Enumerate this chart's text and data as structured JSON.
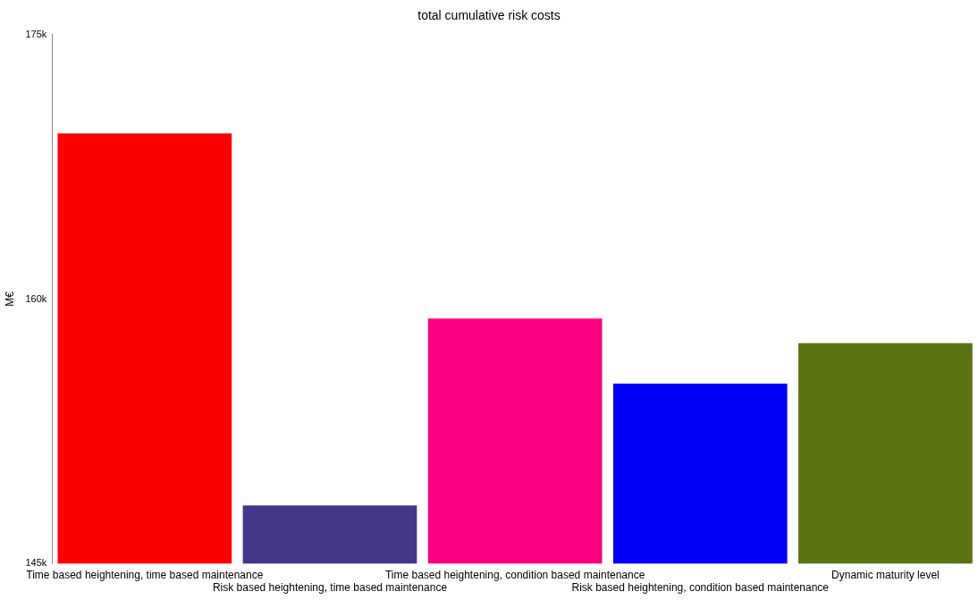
{
  "chart_data": {
    "type": "bar",
    "title": "total cumulative risk costs",
    "ylabel": "M€",
    "categories": [
      "Time based heightening, time based maintenance",
      "Risk based heightening, time based maintenance",
      "Time based heightening, condition based maintenance",
      "Risk based heightening, condition based maintenance",
      "Dynamic maturity level"
    ],
    "values": [
      169400,
      148300,
      158900,
      155200,
      157500
    ],
    "colors": [
      "#fa0000",
      "#46368a",
      "#fa0080",
      "#0000fa",
      "#5a7414"
    ],
    "ylim": [
      145000,
      175000
    ],
    "yticks": [
      {
        "value": 145000,
        "label": "145k"
      },
      {
        "value": 160000,
        "label": "160k"
      },
      {
        "value": 175000,
        "label": "175k"
      }
    ],
    "grid": false,
    "legend": false
  }
}
